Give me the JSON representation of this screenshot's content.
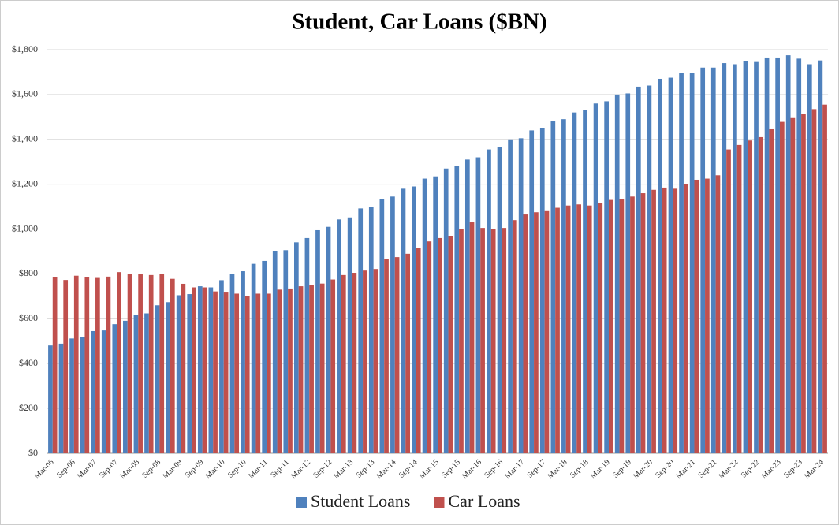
{
  "chart_data": {
    "type": "bar",
    "title": "Student, Car Loans ($BN)",
    "categories": [
      "Mar-06",
      null,
      "Sep-06",
      null,
      "Mar-07",
      null,
      "Sep-07",
      null,
      "Mar-08",
      null,
      "Sep-08",
      null,
      "Mar-09",
      null,
      "Sep-09",
      null,
      "Mar-10",
      null,
      "Sep-10",
      null,
      "Mar-11",
      null,
      "Sep-11",
      null,
      "Mar-12",
      null,
      "Sep-12",
      null,
      "Mar-13",
      null,
      "Sep-13",
      null,
      "Mar-14",
      null,
      "Sep-14",
      null,
      "Mar-15",
      null,
      "Sep-15",
      null,
      "Mar-16",
      null,
      "Sep-16",
      null,
      "Mar-17",
      null,
      "Sep-17",
      null,
      "Mar-18",
      null,
      "Sep-18",
      null,
      "Mar-19",
      null,
      "Sep-19",
      null,
      "Mar-20",
      null,
      "Sep-20",
      null,
      "Mar-21",
      null,
      "Sep-21",
      null,
      "Mar-22",
      null,
      "Sep-22",
      null,
      "Mar-23",
      null,
      "Sep-23",
      null,
      "Mar-24"
    ],
    "series": [
      {
        "name": "Student Loans",
        "color": "#4f81bd",
        "values": [
          481,
          489,
          512,
          520,
          545,
          548,
          576,
          591,
          617,
          624,
          660,
          674,
          705,
          710,
          745,
          740,
          772,
          800,
          812,
          845,
          858,
          900,
          906,
          941,
          960,
          995,
          1010,
          1043,
          1052,
          1092,
          1100,
          1135,
          1145,
          1180,
          1190,
          1225,
          1235,
          1270,
          1280,
          1310,
          1320,
          1355,
          1365,
          1400,
          1405,
          1440,
          1450,
          1480,
          1490,
          1520,
          1530,
          1560,
          1570,
          1600,
          1605,
          1635,
          1640,
          1670,
          1675,
          1695,
          1695,
          1720,
          1720,
          1740,
          1735,
          1750,
          1745,
          1765,
          1765,
          1775,
          1760,
          1735,
          1752
        ]
      },
      {
        "name": "Car Loans",
        "color": "#c0504d",
        "values": [
          785,
          773,
          792,
          785,
          782,
          788,
          808,
          800,
          798,
          795,
          800,
          778,
          756,
          740,
          740,
          722,
          717,
          712,
          700,
          712,
          712,
          730,
          735,
          745,
          750,
          757,
          775,
          795,
          805,
          815,
          822,
          865,
          875,
          890,
          915,
          945,
          960,
          968,
          1000,
          1030,
          1005,
          1000,
          1005,
          1040,
          1065,
          1075,
          1080,
          1095,
          1105,
          1110,
          1105,
          1115,
          1130,
          1135,
          1145,
          1160,
          1175,
          1185,
          1180,
          1200,
          1220,
          1225,
          1240,
          1355,
          1375,
          1395,
          1410,
          1445,
          1478,
          1495,
          1515,
          1535,
          1555
        ]
      }
    ],
    "ylim": [
      0,
      1800
    ],
    "yticks": [
      {
        "value": 0,
        "label": "$0"
      },
      {
        "value": 200,
        "label": "$200"
      },
      {
        "value": 400,
        "label": "$400"
      },
      {
        "value": 600,
        "label": "$600"
      },
      {
        "value": 800,
        "label": "$800"
      },
      {
        "value": 1000,
        "label": "$1,000"
      },
      {
        "value": 1200,
        "label": "$1,200"
      },
      {
        "value": 1400,
        "label": "$1,400"
      },
      {
        "value": 1600,
        "label": "$1,600"
      },
      {
        "value": 1800,
        "label": "$1,800"
      }
    ],
    "grid": true,
    "legend": "bottom"
  }
}
